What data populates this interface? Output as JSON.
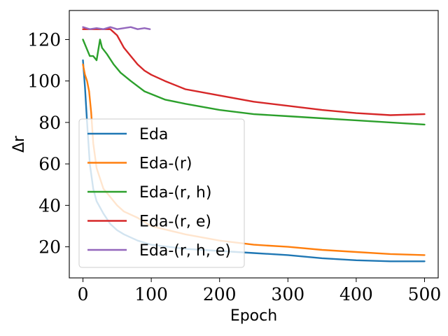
{
  "chart_data": {
    "type": "line",
    "title": "",
    "xlabel": "Epoch",
    "ylabel": "Δr",
    "xlim": [
      -20,
      520
    ],
    "ylim": [
      5,
      134
    ],
    "xticks": [
      0,
      100,
      200,
      300,
      400,
      500
    ],
    "yticks": [
      20,
      40,
      60,
      80,
      100,
      120
    ],
    "grid": false,
    "legend_position": "lower-left",
    "series": [
      {
        "name": "Eda",
        "color": "#1f77b4",
        "x": [
          0,
          3,
          6,
          10,
          15,
          20,
          30,
          40,
          50,
          60,
          80,
          100,
          125,
          150,
          200,
          250,
          300,
          350,
          400,
          450,
          500
        ],
        "y": [
          110,
          97,
          80,
          60,
          48,
          42,
          36,
          31,
          28,
          26,
          23,
          21,
          20,
          19,
          18,
          17,
          16,
          14.5,
          13.5,
          13,
          13
        ]
      },
      {
        "name": "Eda-(r)",
        "color": "#ff7f0e",
        "x": [
          0,
          3,
          6,
          9,
          12,
          15,
          20,
          30,
          40,
          50,
          60,
          80,
          100,
          125,
          150,
          200,
          250,
          300,
          350,
          400,
          450,
          500
        ],
        "y": [
          108,
          103,
          100,
          95,
          85,
          70,
          58,
          48,
          44,
          40,
          37,
          34,
          30,
          28,
          26,
          23,
          21,
          20,
          18.5,
          17.5,
          16.5,
          16
        ]
      },
      {
        "name": "Eda-(r, h)",
        "color": "#2ca02c",
        "x": [
          0,
          5,
          10,
          15,
          20,
          25,
          28,
          35,
          45,
          55,
          70,
          90,
          120,
          150,
          200,
          250,
          300,
          350,
          400,
          450,
          500
        ],
        "y": [
          120,
          116,
          112,
          112,
          110,
          120,
          116,
          113,
          108,
          104,
          100,
          95,
          91,
          89,
          86,
          84,
          83,
          82,
          81,
          80,
          79
        ]
      },
      {
        "name": "Eda-(r, e)",
        "color": "#d62728",
        "x": [
          0,
          10,
          20,
          30,
          40,
          50,
          60,
          70,
          80,
          90,
          100,
          120,
          150,
          200,
          250,
          300,
          350,
          400,
          450,
          500
        ],
        "y": [
          125,
          125,
          125,
          125,
          125,
          122,
          116,
          112,
          108,
          105,
          103,
          100,
          96,
          93,
          90,
          88,
          86,
          84.5,
          83.5,
          84
        ]
      },
      {
        "name": "Eda-(r, h, e)",
        "color": "#9467bd",
        "x": [
          0,
          10,
          20,
          30,
          40,
          50,
          60,
          70,
          80,
          90,
          98
        ],
        "y": [
          126,
          125,
          125.5,
          125,
          126,
          125,
          125.5,
          126,
          125,
          125.5,
          125
        ]
      }
    ]
  }
}
